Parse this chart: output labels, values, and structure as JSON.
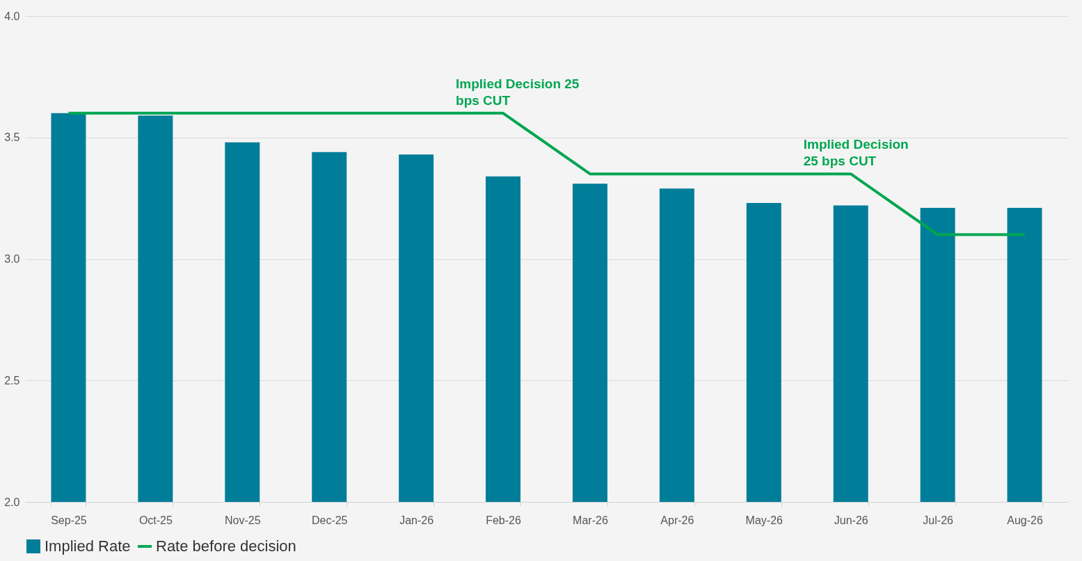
{
  "chart_data": {
    "type": "bar",
    "categories": [
      "Sep-25",
      "Oct-25",
      "Nov-25",
      "Dec-25",
      "Jan-26",
      "Feb-26",
      "Mar-26",
      "Apr-26",
      "May-26",
      "Jun-26",
      "Jul-26",
      "Aug-26"
    ],
    "series": [
      {
        "name": "Implied Rate",
        "color": "#007d99",
        "values": [
          3.6,
          3.59,
          3.48,
          3.44,
          3.43,
          3.34,
          3.31,
          3.29,
          3.23,
          3.22,
          3.21,
          3.21
        ]
      },
      {
        "name": "Rate before decision",
        "type": "line",
        "color": "#00a651",
        "values": [
          3.6,
          3.6,
          3.6,
          3.6,
          3.6,
          3.6,
          3.35,
          3.35,
          3.35,
          3.35,
          3.1,
          3.1
        ]
      }
    ],
    "ylim": [
      2.0,
      4.0
    ],
    "yticks": [
      {
        "value": 2.0,
        "label": "2.0"
      },
      {
        "value": 2.5,
        "label": "2.5"
      },
      {
        "value": 3.0,
        "label": "3.0"
      },
      {
        "value": 3.5,
        "label": "3.5"
      },
      {
        "value": 4.0,
        "label": "4.0"
      }
    ],
    "grid": "y",
    "legend": "bottom",
    "annotations": [
      {
        "text": "Implied Decision 25\nbps CUT",
        "x": "Feb-26",
        "y": 3.6
      },
      {
        "text": "Implied Decision\n25 bps CUT",
        "x": "Jun-26",
        "y": 3.35
      }
    ]
  }
}
